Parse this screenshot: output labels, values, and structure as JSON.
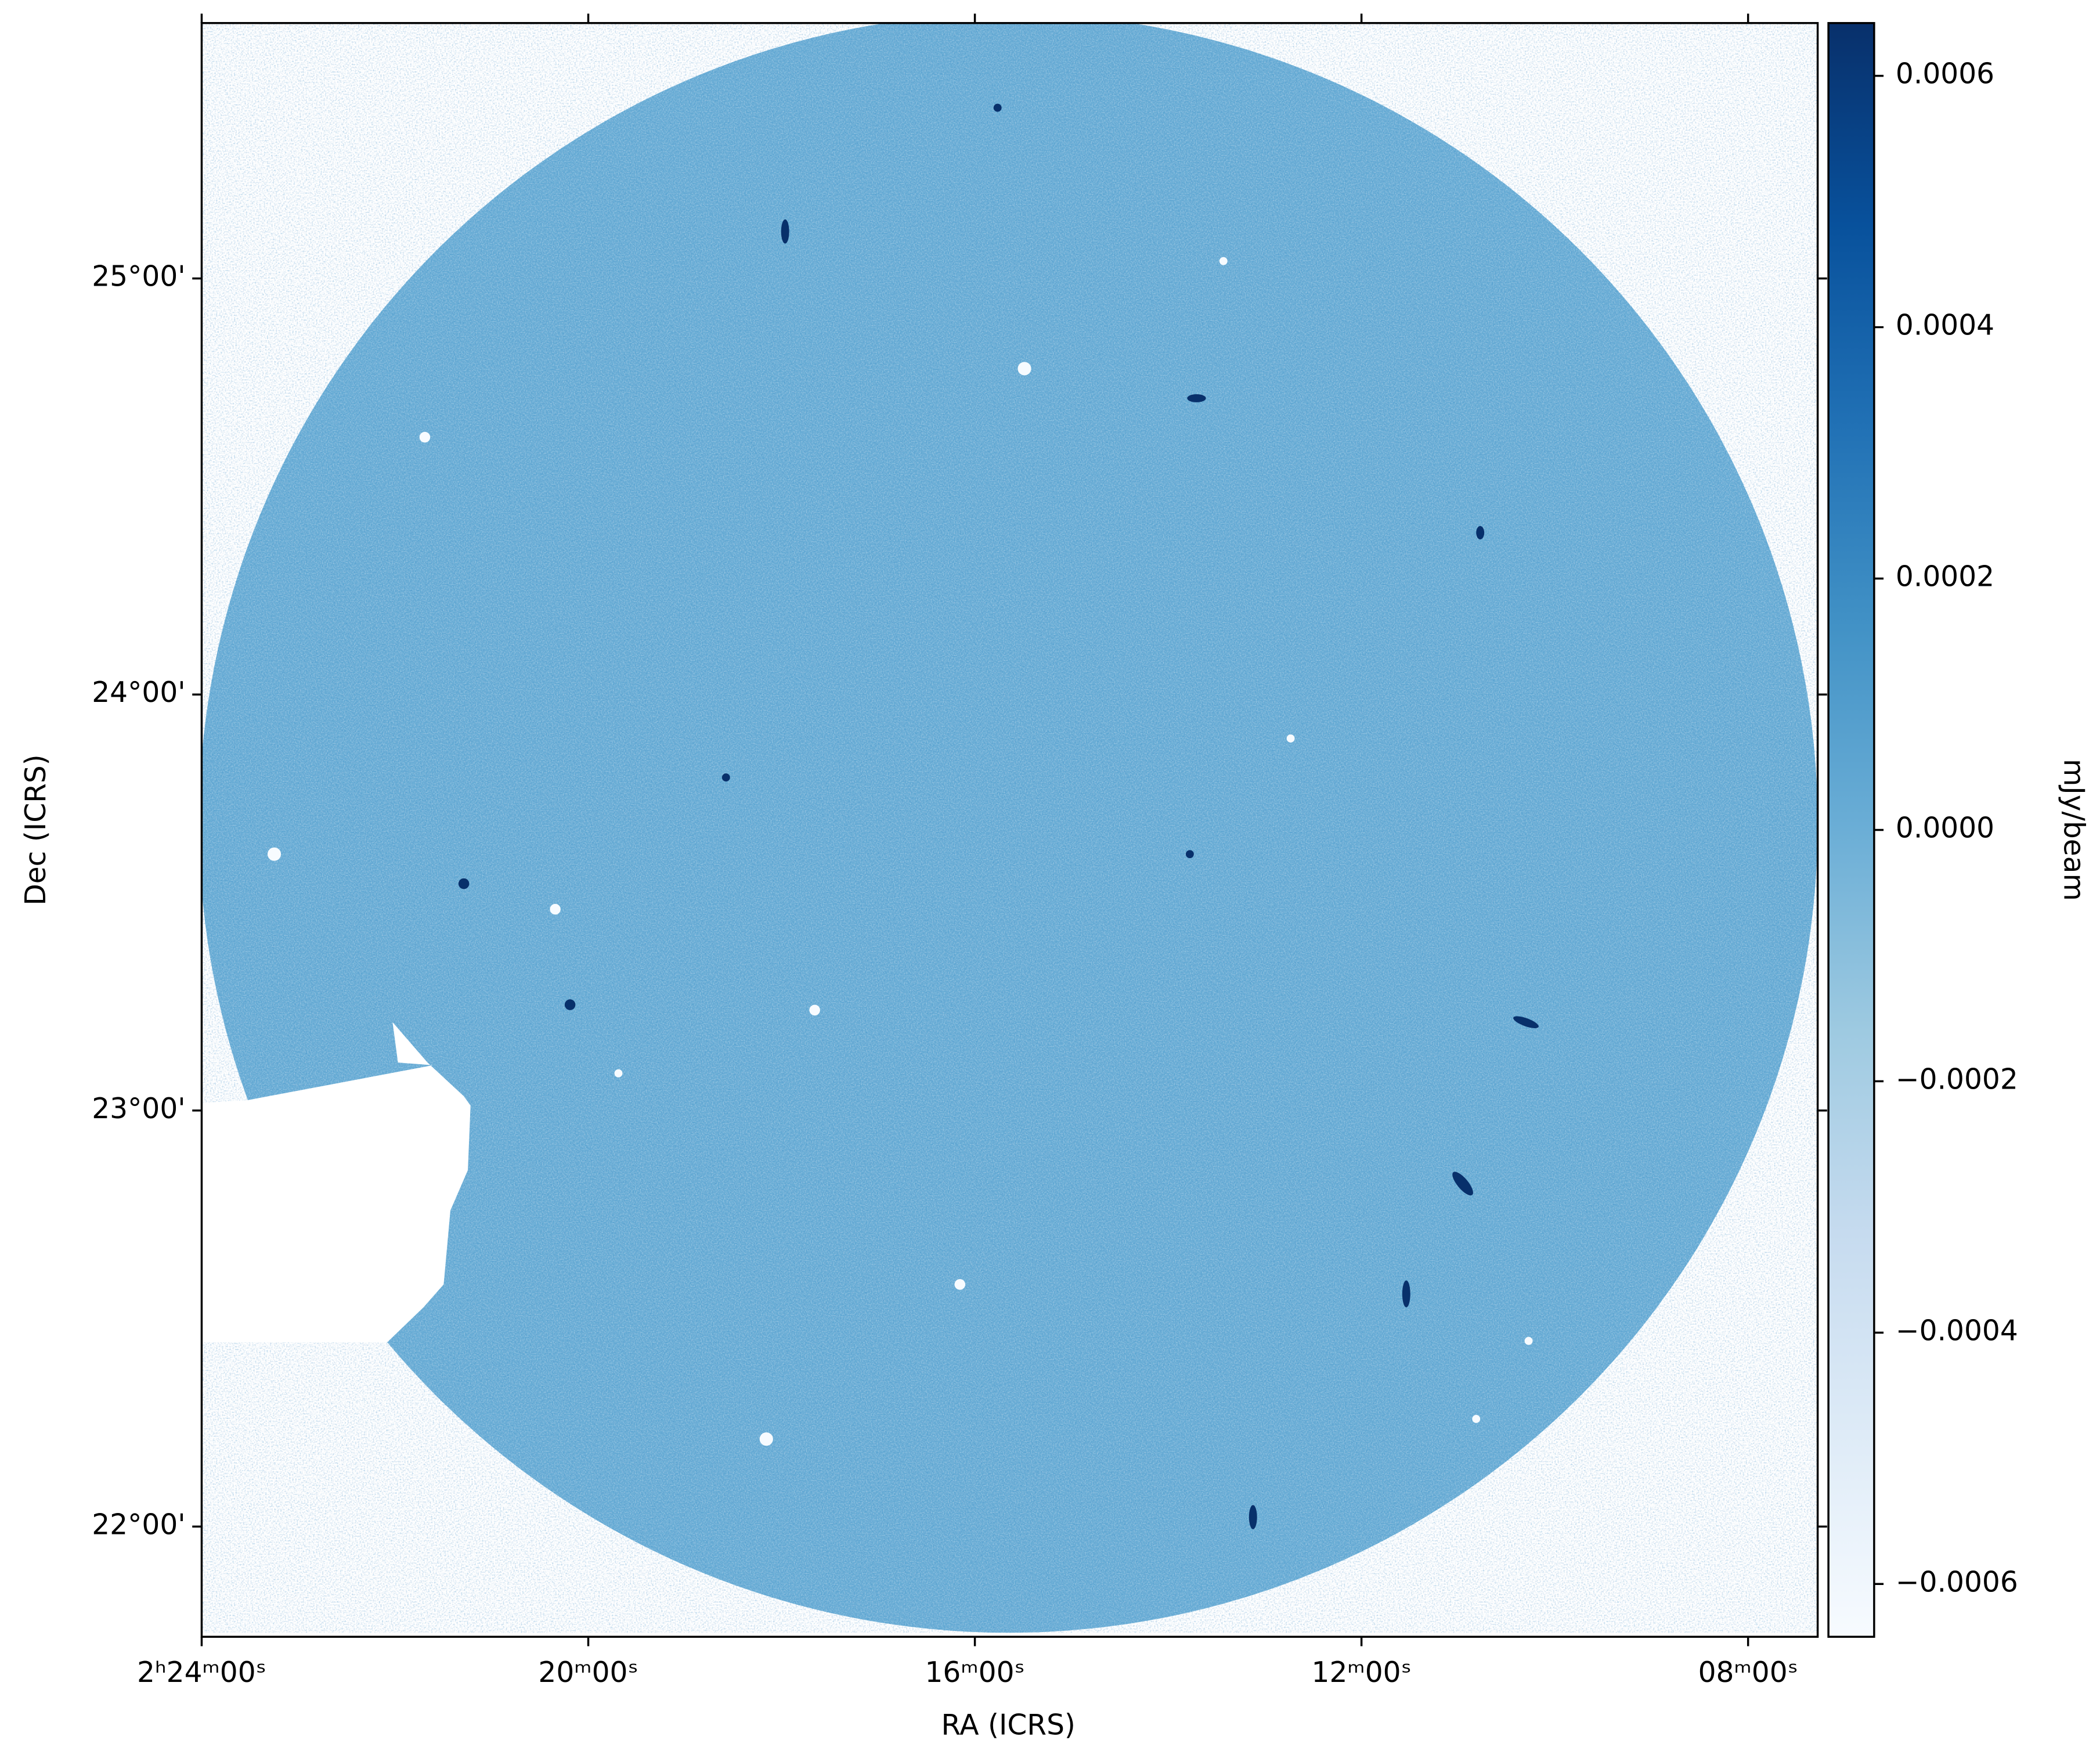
{
  "chart_data": {
    "type": "image",
    "xlabel": "RA (ICRS)",
    "ylabel": "Dec (ICRS)",
    "colorbar_label": "mJy/beam",
    "colormap": [
      "#f7fbff",
      "#deebf7",
      "#c6dbef",
      "#9ecae1",
      "#6baed6",
      "#4292c6",
      "#2171b5",
      "#08519c",
      "#08306b"
    ],
    "xlim": [
      36,
      31.82
    ],
    "ylim": [
      21.735,
      25.614
    ],
    "xticks": [
      {
        "value": 36,
        "label": "2ʰ24ᵐ00ˢ"
      },
      {
        "value": 35,
        "label": "20ᵐ00ˢ"
      },
      {
        "value": 34,
        "label": "16ᵐ00ˢ"
      },
      {
        "value": 33,
        "label": "12ᵐ00ˢ"
      },
      {
        "value": 32,
        "label": "08ᵐ00ˢ"
      }
    ],
    "yticks": [
      {
        "value": 22,
        "label": "22°00'"
      },
      {
        "value": 23,
        "label": "23°00'"
      },
      {
        "value": 24,
        "label": "24°00'"
      },
      {
        "value": 25,
        "label": "25°00'"
      }
    ],
    "clim": [
      -0.000642,
      0.000642
    ],
    "cticks": [
      {
        "value": -0.0006,
        "label": "−0.0006"
      },
      {
        "value": -0.0004,
        "label": "−0.0004"
      },
      {
        "value": -0.0002,
        "label": "−0.0002"
      },
      {
        "value": 0,
        "label": "0.0000"
      },
      0.0002,
      0.0004,
      0.0006
    ]
  }
}
